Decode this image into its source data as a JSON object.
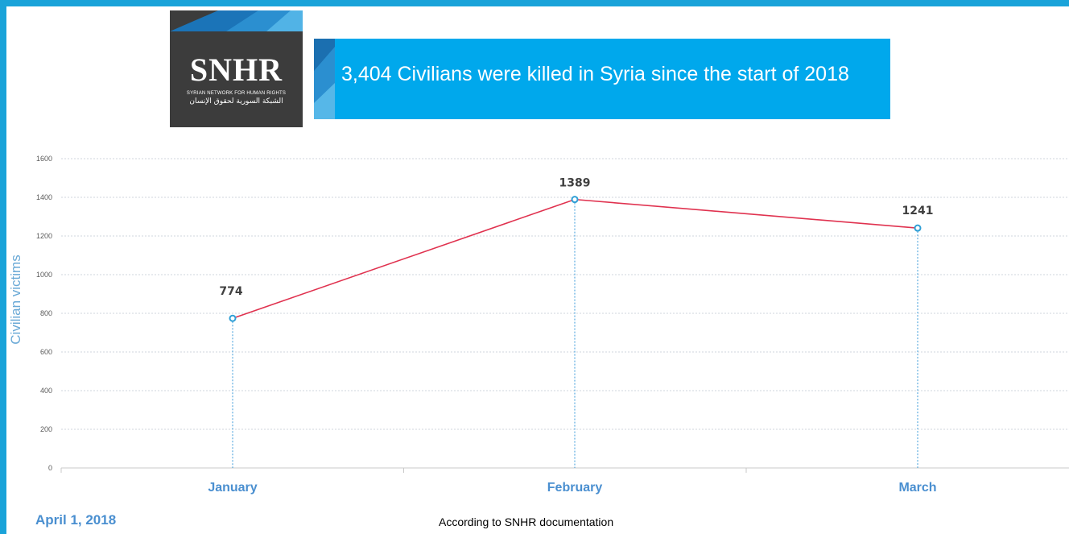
{
  "logo": {
    "brand": "SNHR",
    "subtitle": "SYRIAN NETWORK FOR HUMAN RIGHTS",
    "subtitle_ar": "الشبكة السورية لحقوق الإنسان"
  },
  "banner": {
    "text": "3,404 Civilians were killed in Syria since the start of 2018"
  },
  "footer": {
    "date": "April 1, 2018",
    "note": "According to SNHR documentation"
  },
  "colors": {
    "frame": "#1aa3d9",
    "banner": "#00a8ec",
    "line": "#e0324f",
    "marker": "#2f9fd6",
    "axis_label": "#4a8fd0"
  },
  "chart_data": {
    "type": "line",
    "categories": [
      "January",
      "February",
      "March"
    ],
    "values": [
      774,
      1389,
      1241
    ],
    "ylabel": "Civilian victims",
    "ylim": [
      0,
      1600
    ],
    "yticks": [
      0,
      200,
      400,
      600,
      800,
      1000,
      1200,
      1400,
      1600
    ],
    "grid": true,
    "data_labels": true,
    "legend": "none"
  }
}
